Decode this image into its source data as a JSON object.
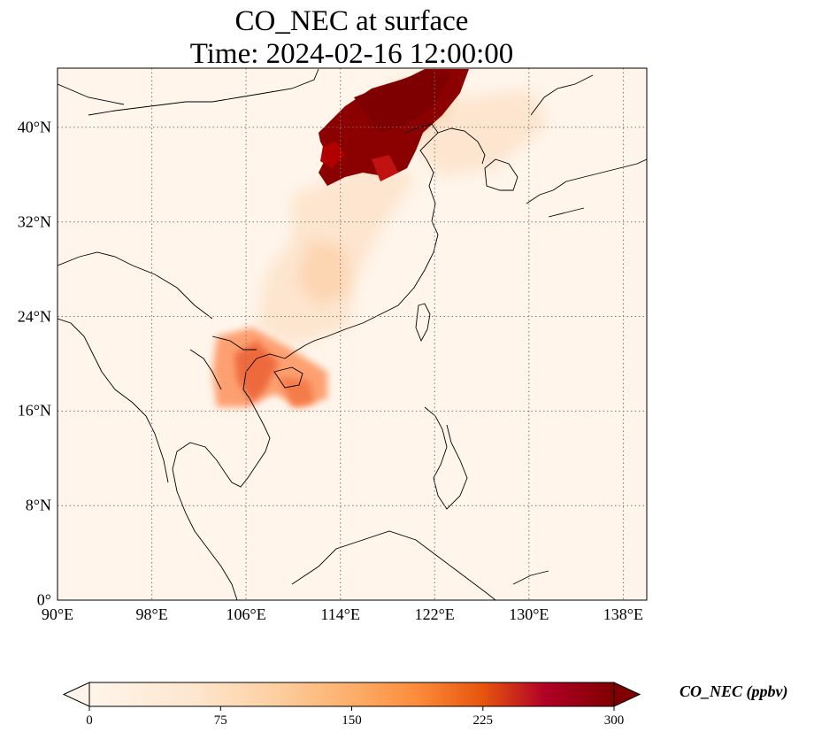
{
  "title": {
    "line1": "CO_NEC at surface",
    "line2": "Time: 2024-02-16 12:00:00"
  },
  "map": {
    "extent": {
      "lon_min": 90,
      "lon_max": 140,
      "lat_min": 0,
      "lat_max": 45
    },
    "x_ticks": [
      "90°E",
      "98°E",
      "106°E",
      "114°E",
      "122°E",
      "130°E",
      "138°E"
    ],
    "y_ticks": [
      "0°",
      "8°N",
      "16°N",
      "24°N",
      "32°N",
      "40°N"
    ],
    "gridlines": "dotted",
    "background_color": "#fff5eb"
  },
  "colorbar": {
    "label": "CO_NEC (ppbv)",
    "ticks": [
      "0",
      "75",
      "150",
      "225",
      "300"
    ],
    "range": [
      0,
      300
    ],
    "extend": "both",
    "colors": [
      "#fff5eb",
      "#fdd0a2",
      "#fd8d3c",
      "#d94801",
      "#a50f15",
      "#7f0000"
    ]
  }
}
